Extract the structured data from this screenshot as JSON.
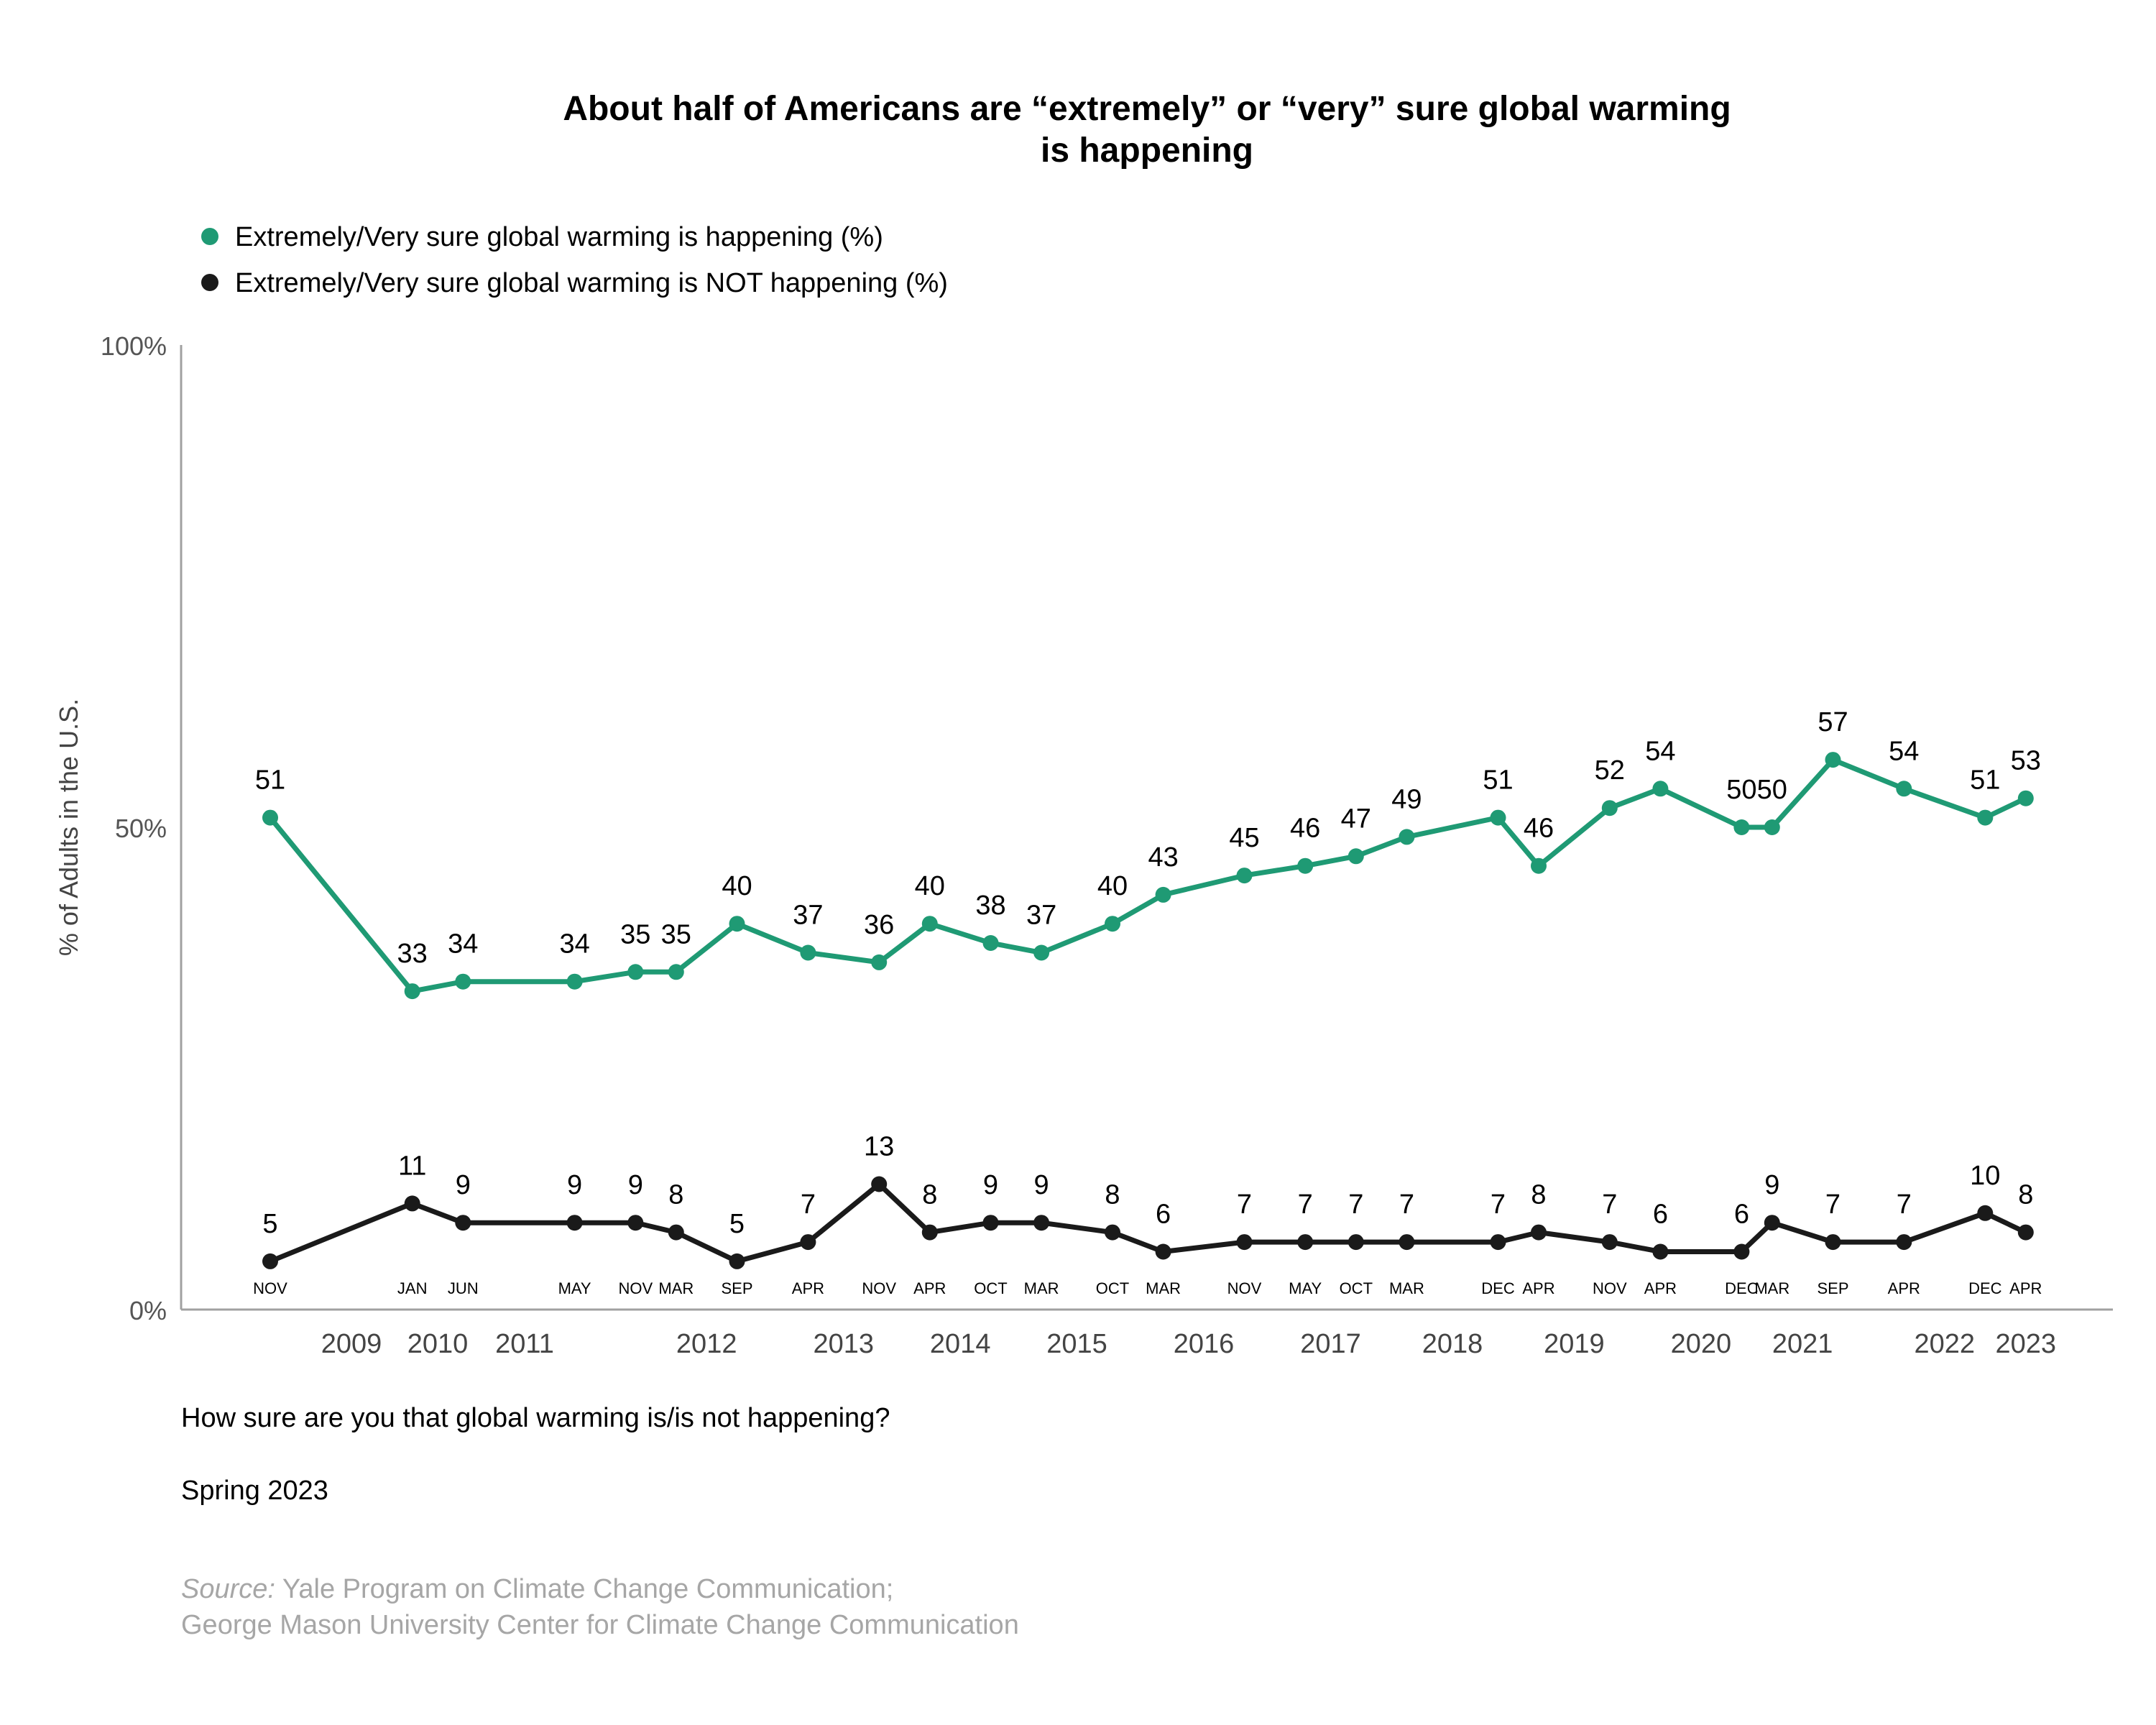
{
  "chart_data": {
    "type": "line",
    "title_line1": "About half of Americans are “extremely” or “very” sure global warming",
    "title_line2": "is happening",
    "ylabel": "% of Adults in the U.S.",
    "ylim": [
      0,
      100
    ],
    "yticks": [
      "0%",
      "50%",
      "100%"
    ],
    "legend_placement": "top-left",
    "grid": false,
    "years": [
      "2009",
      "2010",
      "2011",
      "2012",
      "2013",
      "2014",
      "2015",
      "2016",
      "2017",
      "2018",
      "2019",
      "2020",
      "2021",
      "2022",
      "2023"
    ],
    "x": [
      "2008-11",
      "2010-01",
      "2010-06",
      "2011-05",
      "2011-11",
      "2012-03",
      "2012-09",
      "2013-04",
      "2013-11",
      "2014-04",
      "2014-10",
      "2015-03",
      "2015-10",
      "2016-03",
      "2016-11",
      "2017-05",
      "2017-10",
      "2018-03",
      "2018-12",
      "2019-04",
      "2019-11",
      "2020-04",
      "2020-12",
      "2021-03",
      "2021-09",
      "2022-04",
      "2022-12",
      "2023-04"
    ],
    "months": [
      "NOV",
      "JAN",
      "JUN",
      "MAY",
      "NOV",
      "MAR",
      "SEP",
      "APR",
      "NOV",
      "APR",
      "OCT",
      "MAR",
      "OCT",
      "MAR",
      "NOV",
      "MAY",
      "OCT",
      "MAR",
      "DEC",
      "APR",
      "NOV",
      "APR",
      "DEC",
      "MAR",
      "SEP",
      "APR",
      "DEC",
      "APR"
    ],
    "series": [
      {
        "name": "Extremely/Very sure global warming is happening (%)",
        "color": "#1f9a74",
        "values": [
          51,
          33,
          34,
          34,
          35,
          35,
          40,
          37,
          36,
          40,
          38,
          37,
          40,
          43,
          45,
          46,
          47,
          49,
          51,
          46,
          52,
          54,
          50,
          50,
          57,
          54,
          51,
          53
        ]
      },
      {
        "name": "Extremely/Very sure global warming is NOT happening (%)",
        "color": "#1a1a1a",
        "values": [
          5,
          11,
          9,
          9,
          9,
          8,
          5,
          7,
          13,
          8,
          9,
          9,
          8,
          6,
          7,
          7,
          7,
          7,
          7,
          8,
          7,
          6,
          6,
          9,
          7,
          7,
          10,
          8
        ]
      }
    ]
  },
  "footer": {
    "question": "How sure are you that global warming is/is not happening?",
    "wave": "Spring 2023",
    "source_label": "Source:",
    "source_line1": " Yale Program on Climate Change Communication;",
    "source_line2": "George Mason University Center for Climate Change Communication"
  }
}
